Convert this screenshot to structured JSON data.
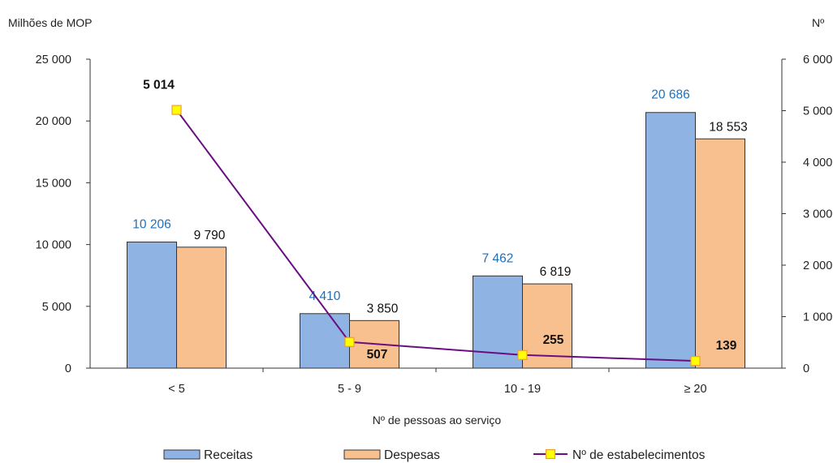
{
  "chart_data": {
    "type": "bar",
    "xlabel": "Nº de pessoas ao serviço",
    "ylabel": "Milhões de MOP",
    "y2label": "Nº",
    "categories": [
      "< 5",
      "5 - 9",
      "10 - 19",
      "≥ 20"
    ],
    "ylim": [
      0,
      25000
    ],
    "y2lim": [
      0,
      6000
    ],
    "yticks": [
      "0",
      "5 000",
      "10 000",
      "15 000",
      "20 000",
      "25 000"
    ],
    "y2ticks": [
      "0",
      "1 000",
      "2 000",
      "3 000",
      "4 000",
      "5 000",
      "6 000"
    ],
    "series": [
      {
        "name": "Receitas",
        "kind": "bar",
        "axis": "left",
        "values": [
          10206,
          4410,
          7462,
          20686
        ],
        "labels": [
          "10 206",
          "4 410",
          "7 462",
          "20 686"
        ],
        "color": "#8fb3e3"
      },
      {
        "name": "Despesas",
        "kind": "bar",
        "axis": "left",
        "values": [
          9790,
          3850,
          6819,
          18553
        ],
        "labels": [
          "9 790",
          "3 850",
          "6 819",
          "18 553"
        ],
        "color": "#f9c08f"
      },
      {
        "name": "Nº de estabelecimentos",
        "kind": "line",
        "axis": "right",
        "values": [
          5014,
          507,
          255,
          139
        ],
        "labels": [
          "5 014",
          "507",
          "255",
          "139"
        ],
        "color": "#6a0d83",
        "marker_color": "#ffff00",
        "marker_edge": "#f0a030"
      }
    ],
    "legend_position": "bottom",
    "grid": false
  }
}
